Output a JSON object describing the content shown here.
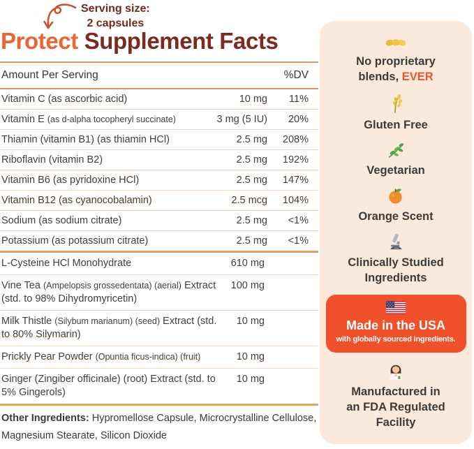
{
  "serving_note": {
    "line1": "Serving size:",
    "line2": "2 capsules"
  },
  "title": {
    "highlight": "Protect",
    "rest": " Supplement Facts"
  },
  "table": {
    "header": {
      "amount_label": "Amount Per Serving",
      "dv_label": "%DV"
    },
    "vitamin_rows": [
      {
        "name": [
          {
            "t": "Vitamin C (as ascorbic acid)"
          }
        ],
        "amount": "10 mg",
        "dv": "11%"
      },
      {
        "name": [
          {
            "t": "Vitamin E "
          },
          {
            "t": "(as d-alpha tocopheryl succinate)",
            "small": true
          }
        ],
        "amount": "3 mg (5 IU)",
        "dv": "20%"
      },
      {
        "name": [
          {
            "t": "Thiamin (vitamin B1) (as thiamin HCl)"
          }
        ],
        "amount": "2.5 mg",
        "dv": "208%"
      },
      {
        "name": [
          {
            "t": "Riboflavin (vitamin B2)"
          }
        ],
        "amount": "2.5 mg",
        "dv": "192%"
      },
      {
        "name": [
          {
            "t": "Vitamin B6 (as pyridoxine HCl)"
          }
        ],
        "amount": "2.5 mg",
        "dv": "147%"
      },
      {
        "name": [
          {
            "t": "Vitamin B12 (as cyanocobalamin)"
          }
        ],
        "amount": "2.5 mcg",
        "dv": "104%"
      },
      {
        "name": [
          {
            "t": "Sodium (as sodium citrate)"
          }
        ],
        "amount": "2.5 mg",
        "dv": "<1%"
      },
      {
        "name": [
          {
            "t": "Potassium (as potassium citrate)"
          }
        ],
        "amount": "2.5 mg",
        "dv": "<1%"
      }
    ],
    "botanical_rows": [
      {
        "name": [
          {
            "t": "L-Cysteine HCl Monohydrate"
          }
        ],
        "amount": "610 mg"
      },
      {
        "name": [
          {
            "t": "Vine Tea "
          },
          {
            "t": "(Ampelopsis grossedentata) (aerial)",
            "small": true
          },
          {
            "t": " Extract (std. to 98% Dihydromyricetin)"
          }
        ],
        "amount": "100 mg"
      },
      {
        "name": [
          {
            "t": "Milk Thistle "
          },
          {
            "t": "(Silybum marianum) (seed)",
            "small": true
          },
          {
            "t": " Extract (std. to 80% Silymarin)"
          }
        ],
        "amount": "10 mg"
      },
      {
        "name": [
          {
            "t": "Prickly Pear Powder "
          },
          {
            "t": "(Opuntia ficus-indica) (fruit)",
            "small": true
          }
        ],
        "amount": "10 mg"
      },
      {
        "name": [
          {
            "t": "Ginger (Zingiber officinale) (root) Extract (std. to 5% Gingerols)"
          }
        ],
        "amount": "10 mg"
      }
    ],
    "other_ingredients": {
      "label": "Other Ingredients:",
      "text": " Hypromellose Capsule, Microcrystalline Cellulose, Magnesium Stearate, Silicon Dioxide"
    }
  },
  "sidebar": {
    "items": [
      {
        "type": "feature",
        "icon": "handshake-icon",
        "lines": [
          [
            {
              "t": "No proprietary"
            }
          ],
          [
            {
              "t": "blends, "
            },
            {
              "t": "EVER",
              "accent": true
            }
          ]
        ]
      },
      {
        "type": "feature",
        "icon": "rice-sheaf-icon",
        "lines": [
          [
            {
              "t": "Gluten Free"
            }
          ]
        ]
      },
      {
        "type": "feature",
        "icon": "herb-icon",
        "lines": [
          [
            {
              "t": "Vegetarian"
            }
          ]
        ]
      },
      {
        "type": "feature",
        "icon": "tangerine-icon",
        "lines": [
          [
            {
              "t": "Orange Scent"
            }
          ]
        ]
      },
      {
        "type": "feature",
        "icon": "microscope-icon",
        "lines": [
          [
            {
              "t": "Clinically Studied"
            }
          ],
          [
            {
              "t": "Ingredients"
            }
          ]
        ]
      },
      {
        "type": "card",
        "icon": "us-flag-icon",
        "title": "Made in the USA",
        "subtitle": "with globally sourced ingredients."
      },
      {
        "type": "feature",
        "icon": "scientist-icon",
        "lines": [
          [
            {
              "t": "Manufactured in"
            }
          ],
          [
            {
              "t": "an FDA Regulated"
            }
          ],
          [
            {
              "t": "Facility"
            }
          ]
        ]
      }
    ]
  },
  "colors": {
    "accent_orange": "#EC6434",
    "title_maroon": "#7A2A1E",
    "serving_text": "#72291D",
    "card_orange": "#F0512B",
    "panel_peach": "#FBE9DC",
    "divider_orange": "#E3A163",
    "header_rule": "#D9975F",
    "row_rule": "#F0D8C0",
    "ever_accent": "#EA5430",
    "text_dark": "#3F3933"
  }
}
